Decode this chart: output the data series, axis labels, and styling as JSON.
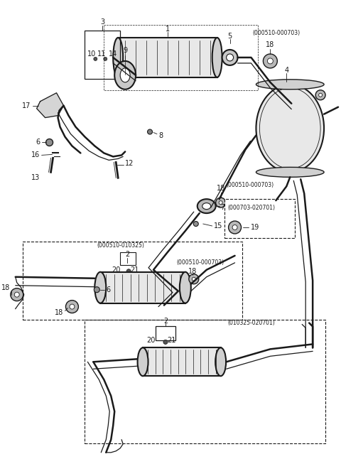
{
  "bg_color": "#ffffff",
  "line_color": "#1a1a1a",
  "fs_label": 7,
  "fs_annot": 5.5,
  "lw_pipe": 1.8,
  "lw_thin": 0.9,
  "lw_call": 0.6,
  "figsize": [
    4.8,
    6.46
  ],
  "dpi": 100,
  "xlim": [
    0,
    480
  ],
  "ylim": [
    0,
    646
  ]
}
